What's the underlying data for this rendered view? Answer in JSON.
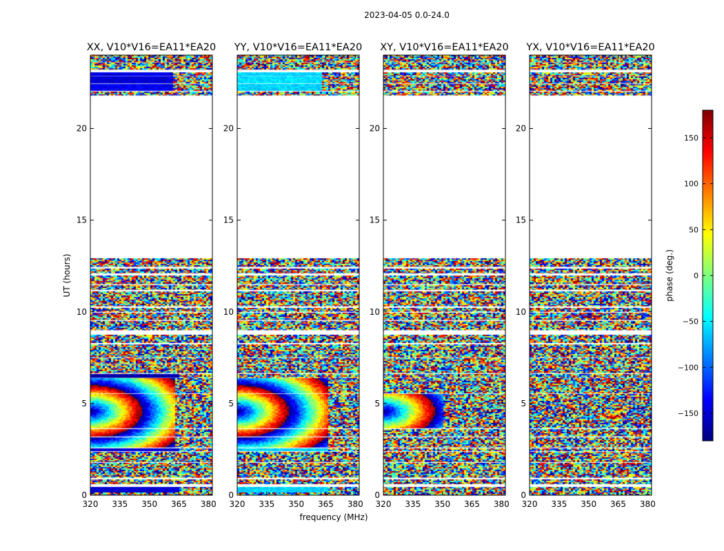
{
  "chart_data": {
    "type": "heatmap",
    "suptitle": "2023-04-05 0.0-24.0",
    "xlabel": "frequency (MHz)",
    "ylabel": "UT (hours)",
    "xlim": [
      320,
      382
    ],
    "ylim": [
      0,
      24
    ],
    "xticks": [
      320,
      335,
      350,
      365,
      380
    ],
    "yticks": [
      0,
      5,
      10,
      15,
      20
    ],
    "colorbar": {
      "label": "phase (deg.)",
      "range": [
        -180,
        180
      ],
      "ticks": [
        150,
        100,
        50,
        0,
        -50,
        -100,
        -150
      ],
      "colormap": "jet",
      "colors": [
        "#00007f",
        "#0000ff",
        "#007fff",
        "#00ffff",
        "#7fff7f",
        "#ffff00",
        "#ff7f00",
        "#ff0000",
        "#7f0000"
      ]
    },
    "data_bands_ut": [
      [
        0.0,
        0.15
      ],
      [
        0.15,
        0.45
      ],
      [
        0.6,
        0.85
      ],
      [
        0.95,
        1.75
      ],
      [
        1.8,
        2.35
      ],
      [
        2.4,
        2.55
      ],
      [
        2.6,
        3.15
      ],
      [
        3.2,
        3.6
      ],
      [
        3.65,
        5.5
      ],
      [
        5.55,
        6.35
      ],
      [
        6.4,
        6.6
      ],
      [
        6.65,
        7.1
      ],
      [
        7.15,
        7.45
      ],
      [
        7.5,
        8.2
      ],
      [
        8.3,
        8.75
      ],
      [
        9.0,
        9.5
      ],
      [
        9.55,
        9.95
      ],
      [
        10.0,
        10.2
      ],
      [
        10.3,
        11.1
      ],
      [
        11.2,
        11.45
      ],
      [
        11.5,
        11.95
      ],
      [
        12.1,
        12.35
      ],
      [
        12.45,
        12.9
      ],
      [
        21.8,
        22.0
      ],
      [
        22.05,
        22.4
      ],
      [
        22.45,
        22.8
      ],
      [
        22.85,
        23.05
      ],
      [
        23.2,
        23.55
      ],
      [
        23.6,
        24.0
      ]
    ],
    "panels": [
      {
        "title": "XX, V10*V16=EA11*EA20",
        "coherent_bands": [
          [
            0.15,
            0.45,
            -150,
            365
          ],
          [
            2.4,
            2.55,
            -150,
            365
          ],
          [
            6.4,
            6.6,
            -165,
            365
          ],
          [
            22.05,
            22.4,
            -140,
            362
          ],
          [
            22.45,
            22.8,
            -150,
            362
          ],
          [
            22.85,
            23.05,
            -145,
            362
          ]
        ],
        "fringe_regions": [
          [
            2.6,
            6.35,
            4.6,
            363
          ]
        ]
      },
      {
        "title": "YY, V10*V16=EA11*EA20",
        "coherent_bands": [
          [
            0.15,
            0.45,
            -60,
            366
          ],
          [
            2.4,
            2.55,
            -60,
            366
          ],
          [
            22.05,
            22.4,
            -60,
            363
          ],
          [
            22.45,
            22.8,
            -55,
            363
          ],
          [
            22.85,
            23.05,
            -60,
            363
          ]
        ],
        "fringe_regions": [
          [
            2.6,
            6.35,
            4.6,
            366
          ]
        ]
      },
      {
        "title": "XY, V10*V16=EA11*EA20",
        "coherent_bands": [],
        "fringe_regions": [
          [
            3.6,
            6.0,
            4.6,
            350
          ]
        ]
      },
      {
        "title": "YX, V10*V16=EA11*EA20",
        "coherent_bands": [],
        "fringe_regions": []
      }
    ]
  }
}
